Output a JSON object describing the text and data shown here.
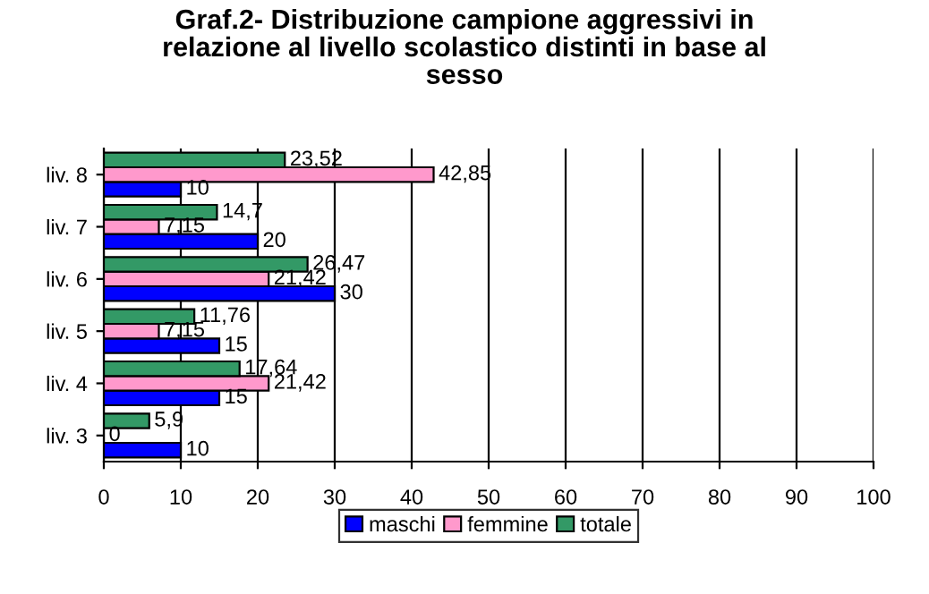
{
  "chart_data": {
    "type": "bar",
    "orientation": "horizontal",
    "title": "Graf.2- Distribuzione campione aggressivi in\nrelazione al livello scolastico distinti in base al\nsesso",
    "categories": [
      "liv. 8",
      "liv. 7",
      "liv. 6",
      "liv. 5",
      "liv. 4",
      "liv. 3"
    ],
    "series": [
      {
        "name": "maschi",
        "color": "#0000ff",
        "values": [
          10,
          20,
          30,
          15,
          15,
          10
        ],
        "value_labels": [
          "10",
          "20",
          "30",
          "15",
          "15",
          "10"
        ]
      },
      {
        "name": "femmine",
        "color": "#ff99cc",
        "values": [
          42.85,
          7.15,
          21.42,
          7.15,
          21.42,
          0
        ],
        "value_labels": [
          "42,85",
          "7,15",
          "21,42",
          "7,15",
          "21,42",
          "0"
        ]
      },
      {
        "name": "totale",
        "color": "#339966",
        "values": [
          23.52,
          14.7,
          26.47,
          11.76,
          17.64,
          5.9
        ],
        "value_labels": [
          "23,52",
          "14,7",
          "26,47",
          "11,76",
          "17,64",
          "5,9"
        ]
      }
    ],
    "xlim": [
      0,
      100
    ],
    "xticks": [
      0,
      10,
      20,
      30,
      40,
      50,
      60,
      70,
      80,
      90,
      100
    ],
    "grid": "x",
    "legend": "bottom"
  }
}
